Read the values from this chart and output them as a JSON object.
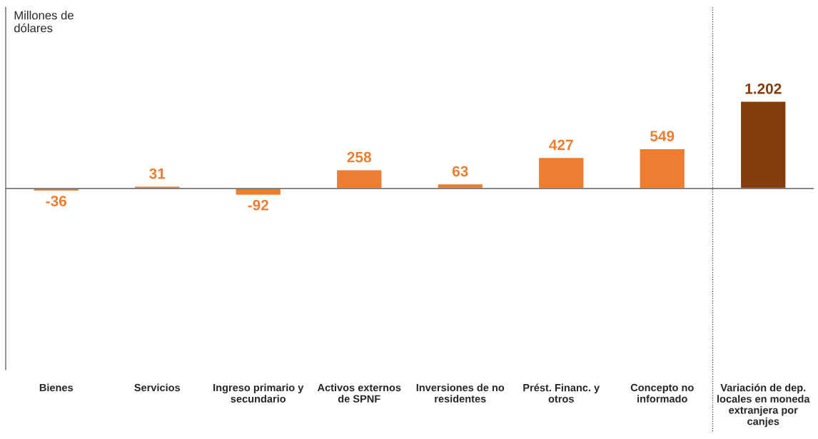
{
  "chart_data": {
    "type": "bar",
    "ylabel": "Millones de dólares",
    "categories": [
      "Bienes",
      "Servicios",
      "Ingreso primario y secundario",
      "Activos externos de SPNF",
      "Inversiones de no residentes",
      "Prést. Financ. y otros",
      "Concepto no informado",
      "Variación de dep. locales en moneda extranjera por canjes"
    ],
    "values": [
      -36,
      31,
      -92,
      258,
      63,
      427,
      549,
      1202
    ],
    "value_labels": [
      "-36",
      "31",
      "-92",
      "258",
      "63",
      "427",
      "549",
      "1.202"
    ],
    "colors": [
      "#ed7d31",
      "#ed7d31",
      "#ed7d31",
      "#ed7d31",
      "#ed7d31",
      "#ed7d31",
      "#ed7d31",
      "#843c0c"
    ],
    "ylim": [
      -2500,
      2500
    ],
    "grid": false,
    "legend": false
  }
}
